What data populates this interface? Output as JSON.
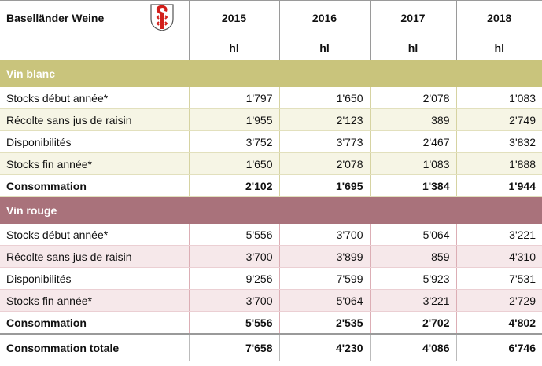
{
  "header": {
    "title": "Baselländer Weine",
    "years": [
      "2015",
      "2016",
      "2017",
      "2018"
    ],
    "unit": "hl"
  },
  "sections": [
    {
      "name": "Vin blanc",
      "rows": [
        {
          "label": "Stocks début année*",
          "values": [
            "1'797",
            "1'650",
            "2'078",
            "1'083"
          ]
        },
        {
          "label": "Récolte sans jus de raisin",
          "values": [
            "1'955",
            "2'123",
            "389",
            "2'749"
          ]
        },
        {
          "label": "Disponibilités",
          "values": [
            "3'752",
            "3'773",
            "2'467",
            "3'832"
          ]
        },
        {
          "label": "Stocks fin année*",
          "values": [
            "1'650",
            "2'078",
            "1'083",
            "1'888"
          ]
        },
        {
          "label": "Consommation",
          "values": [
            "2'102",
            "1'695",
            "1'384",
            "1'944"
          ]
        }
      ]
    },
    {
      "name": "Vin rouge",
      "rows": [
        {
          "label": "Stocks début année*",
          "values": [
            "5'556",
            "3'700",
            "5'064",
            "3'221"
          ]
        },
        {
          "label": "Récolte sans jus de raisin",
          "values": [
            "3'700",
            "3'899",
            "859",
            "4'310"
          ]
        },
        {
          "label": "Disponibilités",
          "values": [
            "9'256",
            "7'599",
            "5'923",
            "7'531"
          ]
        },
        {
          "label": "Stocks fin année*",
          "values": [
            "3'700",
            "5'064",
            "3'221",
            "2'729"
          ]
        },
        {
          "label": "Consommation",
          "values": [
            "5'556",
            "2'535",
            "2'702",
            "4'802"
          ]
        }
      ]
    }
  ],
  "total": {
    "label": "Consommation totale",
    "values": [
      "7'658",
      "4'230",
      "4'086",
      "6'746"
    ]
  }
}
